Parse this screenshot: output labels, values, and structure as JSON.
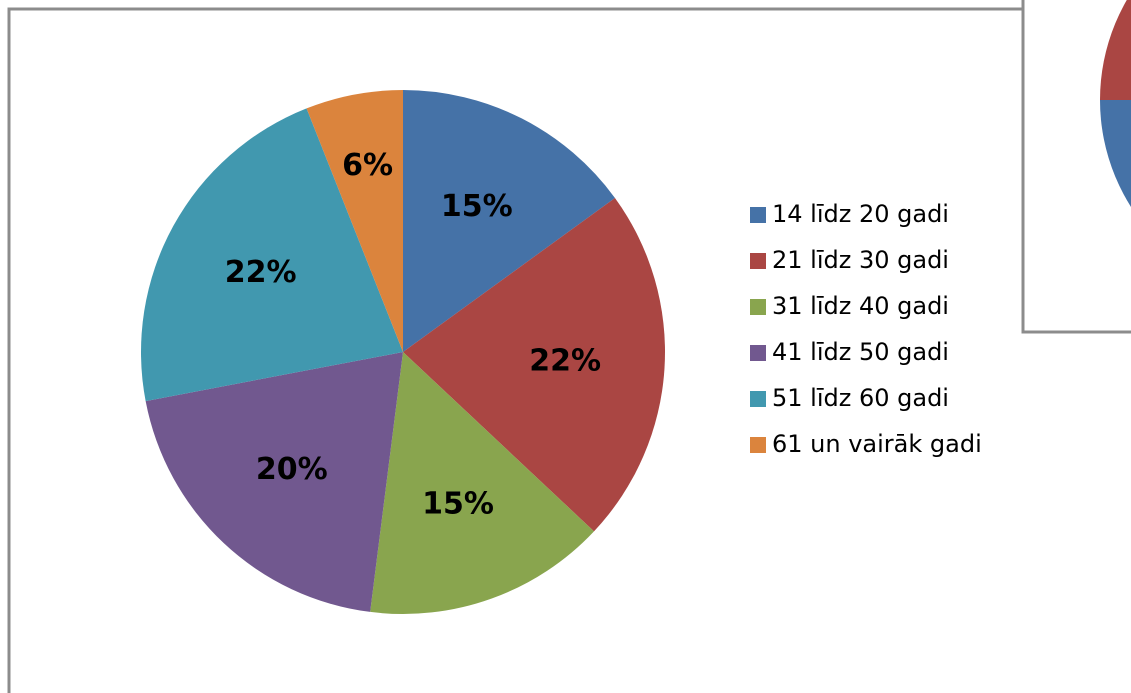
{
  "chart_data": {
    "type": "pie",
    "categories": [
      "14 līdz 20 gadi",
      "21 līdz 30 gadi",
      "31 līdz 40 gadi",
      "41 līdz 50 gadi",
      "51 līdz 60 gadi",
      "61 un vairāk gadi"
    ],
    "values": [
      15,
      22,
      15,
      20,
      22,
      6
    ],
    "value_labels": [
      "15%",
      "22%",
      "15%",
      "20%",
      "22%",
      "6%"
    ],
    "colors": [
      "#4572a7",
      "#aa4643",
      "#89a54e",
      "#71588f",
      "#4198af",
      "#db843d"
    ],
    "legend": "right"
  }
}
